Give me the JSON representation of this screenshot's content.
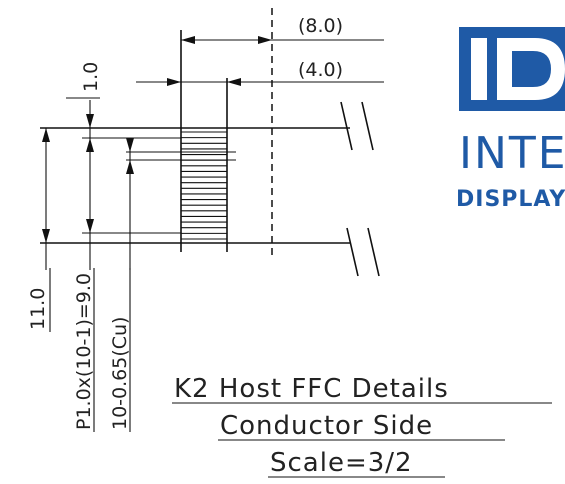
{
  "dimensions": {
    "total_width": "(8.0)",
    "contact_width": "(4.0)",
    "top_offset": "1.0",
    "overall_height": "11.0",
    "pitch_span": "P1.0x(10-1)=9.0",
    "conductor_width": "10-0.65(Cu)"
  },
  "title": {
    "line1": "K2 Host FFC Details",
    "line2": "Conductor Side",
    "line3": "Scale=3/2"
  },
  "logo": {
    "mark": "ID",
    "text1": "INTE",
    "text2": "DISPLAY",
    "color": "#1f5aa6"
  },
  "stripes": {
    "count": 20
  }
}
